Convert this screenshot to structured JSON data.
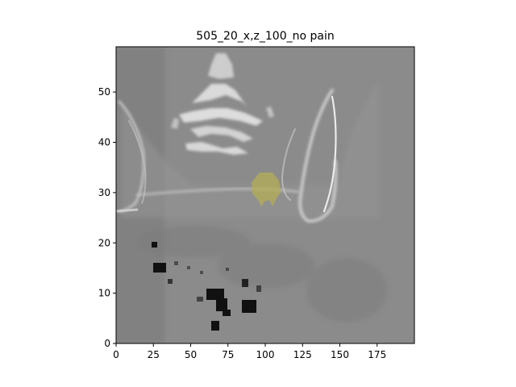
{
  "chart_data": {
    "type": "image",
    "title": "505_20_x,z_100_no pain",
    "xlabel": "",
    "ylabel": "",
    "xlim": [
      0,
      200
    ],
    "ylim": [
      0,
      59
    ],
    "x_ticks": [
      0,
      25,
      50,
      75,
      100,
      125,
      150,
      175
    ],
    "y_ticks": [
      0,
      10,
      20,
      30,
      40,
      50
    ],
    "colormap": "gray",
    "background_level": "#8a8a8a",
    "overlay": {
      "color": "#b5ad55",
      "center": [
        100,
        31
      ],
      "label": ""
    },
    "grid": false
  }
}
